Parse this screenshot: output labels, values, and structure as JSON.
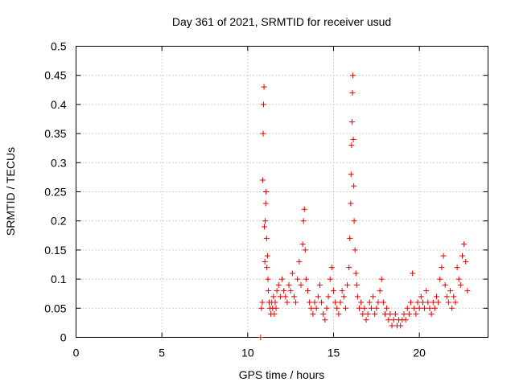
{
  "chart_data": {
    "type": "scatter",
    "title": "Day 361 of 2021, SRMTID for receiver usud",
    "xlabel": "GPS time / hours",
    "ylabel": "SRMTID / TECUs",
    "xlim": [
      0,
      24
    ],
    "ylim": [
      0,
      0.5
    ],
    "xticks": [
      0,
      5,
      10,
      15,
      20
    ],
    "xtick_labels": [
      "0",
      "5",
      "10",
      "15",
      "20"
    ],
    "yticks": [
      0,
      0.05,
      0.1,
      0.15,
      0.2,
      0.25,
      0.3,
      0.35,
      0.4,
      0.45,
      0.5
    ],
    "ytick_labels": [
      "0",
      "0.05",
      "0.1",
      "0.15",
      "0.2",
      "0.25",
      "0.3",
      "0.35",
      "0.4",
      "0.45",
      "0.5"
    ],
    "grid": true,
    "marker": "+",
    "color": "#e60000",
    "series": [
      {
        "name": "SRMTID",
        "x": [
          10.75,
          10.8,
          10.85,
          10.88,
          10.9,
          10.92,
          10.95,
          10.97,
          11.0,
          11.02,
          11.05,
          11.07,
          11.1,
          11.12,
          11.15,
          11.18,
          11.2,
          11.25,
          11.3,
          11.35,
          11.4,
          11.45,
          11.5,
          11.55,
          11.6,
          11.65,
          11.7,
          11.8,
          11.9,
          12.0,
          12.1,
          12.2,
          12.3,
          12.4,
          12.5,
          12.6,
          12.7,
          12.8,
          12.9,
          13.0,
          13.1,
          13.2,
          13.25,
          13.3,
          13.35,
          13.4,
          13.5,
          13.6,
          13.7,
          13.8,
          13.9,
          14.0,
          14.1,
          14.2,
          14.3,
          14.4,
          14.5,
          14.6,
          14.7,
          14.8,
          14.9,
          15.0,
          15.1,
          15.2,
          15.3,
          15.4,
          15.5,
          15.6,
          15.7,
          15.8,
          15.9,
          15.95,
          16.0,
          16.02,
          16.05,
          16.08,
          16.1,
          16.12,
          16.15,
          16.18,
          16.2,
          16.25,
          16.3,
          16.35,
          16.4,
          16.5,
          16.6,
          16.7,
          16.8,
          16.9,
          17.0,
          17.1,
          17.2,
          17.3,
          17.4,
          17.5,
          17.6,
          17.7,
          17.8,
          17.9,
          18.0,
          18.1,
          18.2,
          18.3,
          18.4,
          18.5,
          18.6,
          18.7,
          18.8,
          18.9,
          19.0,
          19.1,
          19.2,
          19.3,
          19.4,
          19.5,
          19.6,
          19.7,
          19.8,
          19.9,
          20.0,
          20.1,
          20.2,
          20.3,
          20.4,
          20.5,
          20.6,
          20.7,
          20.8,
          20.9,
          21.0,
          21.1,
          21.2,
          21.3,
          21.4,
          21.5,
          21.6,
          21.7,
          21.8,
          21.9,
          22.0,
          22.1,
          22.2,
          22.3,
          22.4,
          22.5,
          22.6,
          22.7,
          22.8
        ],
        "y": [
          0.0,
          0.05,
          0.06,
          0.27,
          0.35,
          0.4,
          0.43,
          0.19,
          0.13,
          0.2,
          0.23,
          0.25,
          0.17,
          0.12,
          0.14,
          0.1,
          0.08,
          0.06,
          0.05,
          0.04,
          0.06,
          0.05,
          0.07,
          0.04,
          0.06,
          0.05,
          0.08,
          0.09,
          0.07,
          0.1,
          0.08,
          0.07,
          0.06,
          0.09,
          0.08,
          0.11,
          0.07,
          0.06,
          0.1,
          0.13,
          0.09,
          0.16,
          0.2,
          0.22,
          0.15,
          0.1,
          0.08,
          0.06,
          0.05,
          0.04,
          0.06,
          0.05,
          0.07,
          0.09,
          0.06,
          0.04,
          0.03,
          0.05,
          0.07,
          0.1,
          0.12,
          0.08,
          0.06,
          0.05,
          0.04,
          0.06,
          0.08,
          0.07,
          0.05,
          0.09,
          0.12,
          0.17,
          0.23,
          0.28,
          0.33,
          0.37,
          0.42,
          0.45,
          0.34,
          0.26,
          0.2,
          0.15,
          0.11,
          0.09,
          0.07,
          0.05,
          0.06,
          0.04,
          0.05,
          0.03,
          0.04,
          0.06,
          0.05,
          0.07,
          0.04,
          0.05,
          0.06,
          0.08,
          0.1,
          0.06,
          0.04,
          0.05,
          0.03,
          0.04,
          0.02,
          0.03,
          0.04,
          0.02,
          0.03,
          0.02,
          0.03,
          0.04,
          0.03,
          0.05,
          0.04,
          0.06,
          0.11,
          0.05,
          0.04,
          0.06,
          0.05,
          0.07,
          0.06,
          0.05,
          0.08,
          0.06,
          0.05,
          0.04,
          0.06,
          0.05,
          0.07,
          0.06,
          0.1,
          0.12,
          0.14,
          0.09,
          0.07,
          0.06,
          0.08,
          0.05,
          0.07,
          0.06,
          0.12,
          0.1,
          0.09,
          0.14,
          0.16,
          0.13,
          0.08
        ]
      }
    ]
  }
}
